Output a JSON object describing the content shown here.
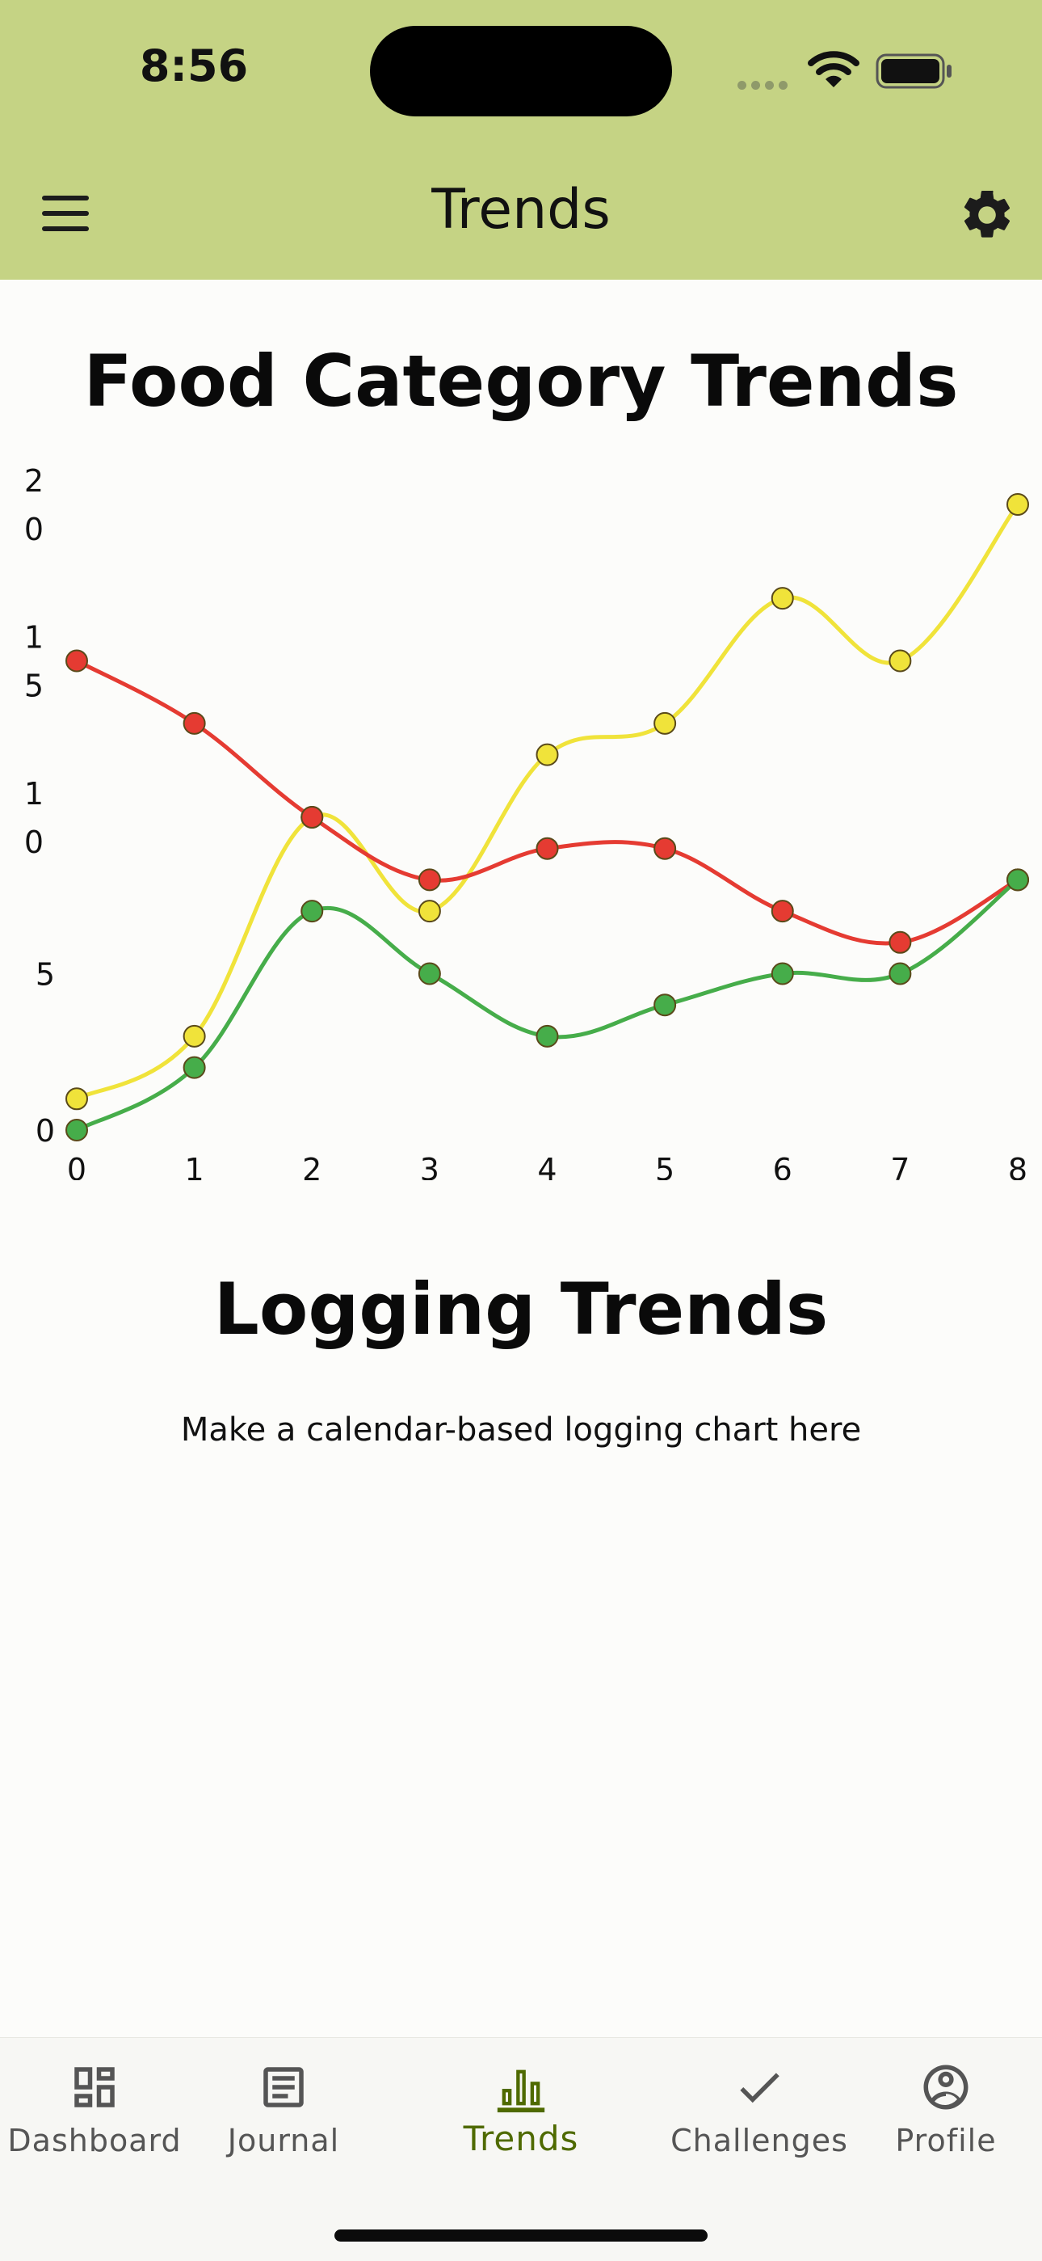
{
  "status_bar": {
    "time": "8:56"
  },
  "app_bar": {
    "title": "Trends"
  },
  "food_section": {
    "title": "Food Category Trends"
  },
  "chart_data": {
    "type": "line",
    "x": [
      0,
      1,
      2,
      3,
      4,
      5,
      6,
      7,
      8
    ],
    "xticks": [
      "0",
      "1",
      "2",
      "3",
      "4",
      "5",
      "6",
      "7",
      "8"
    ],
    "yticks": [
      "0",
      "5",
      "10",
      "15",
      "20"
    ],
    "ylim": [
      0,
      20
    ],
    "xlim": [
      0,
      8
    ],
    "grid": false,
    "legend": "none",
    "series": [
      {
        "color": "#f0e33a",
        "values": [
          1,
          3,
          10,
          7,
          12,
          13,
          17,
          15,
          20
        ]
      },
      {
        "color": "#e53b32",
        "values": [
          15,
          13,
          10,
          8,
          9,
          9,
          7,
          6,
          8
        ]
      },
      {
        "color": "#46ad4a",
        "values": [
          0,
          2,
          7,
          5,
          3,
          4,
          5,
          5,
          8
        ]
      }
    ]
  },
  "logging_section": {
    "title": "Logging Trends",
    "note": "Make a calendar-based logging chart here"
  },
  "bottom_nav": {
    "items": [
      {
        "label": "Dashboard",
        "icon": "dashboard-icon",
        "active": false
      },
      {
        "label": "Journal",
        "icon": "journal-icon",
        "active": false
      },
      {
        "label": "Trends",
        "icon": "bar-chart-icon",
        "active": true
      },
      {
        "label": "Challenges",
        "icon": "check-icon",
        "active": false
      },
      {
        "label": "Profile",
        "icon": "profile-icon",
        "active": false
      }
    ]
  },
  "colors": {
    "bar": "#c5d384",
    "active_nav": "#4f6a00"
  }
}
